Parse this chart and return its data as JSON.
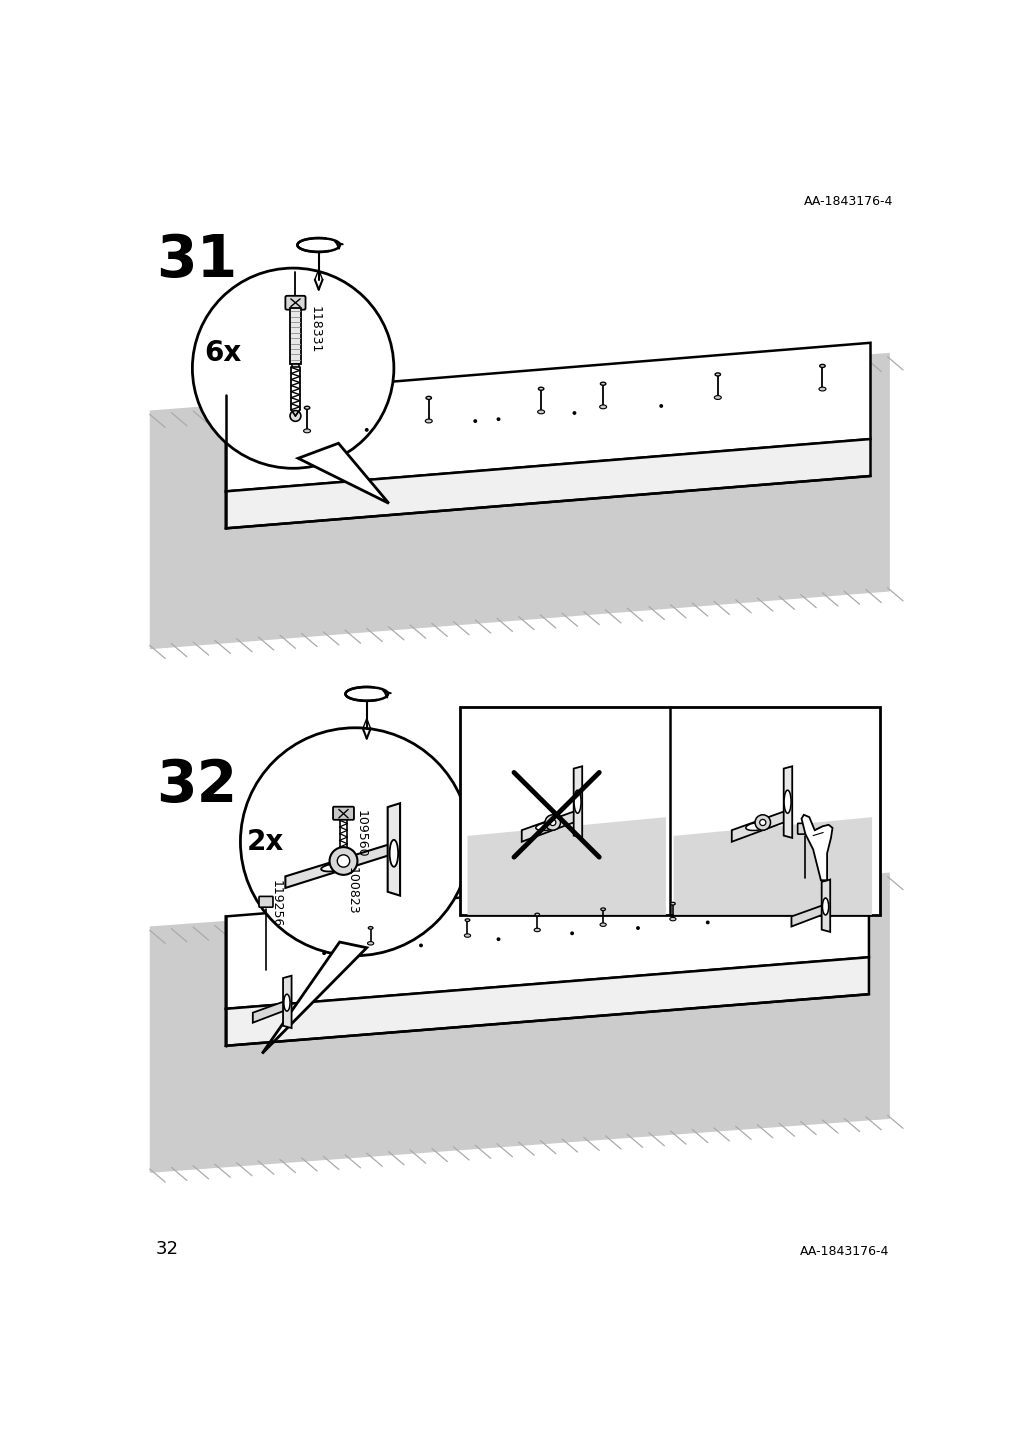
{
  "background_color": "#ffffff",
  "page_number": "32",
  "doc_ref": "AA-1843176-4",
  "floor_color": "#cccccc",
  "board_top_color": "#e8e8e8",
  "board_face_color": "#ffffff",
  "step31": {
    "number": "31",
    "quantity_label": "6x",
    "part_number": "118331"
  },
  "step32": {
    "number": "32",
    "quantity_label": "2x",
    "part_number1": "109560",
    "part_number2": "100823",
    "part_number3": "119256"
  }
}
